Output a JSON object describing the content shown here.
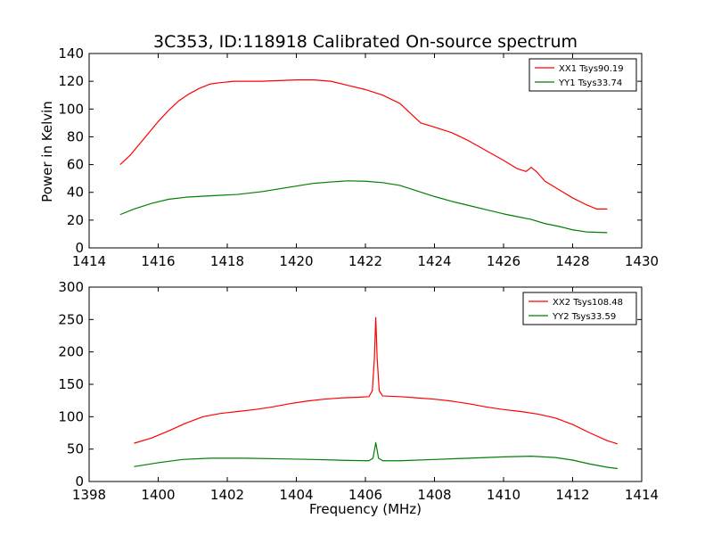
{
  "chart_data": {
    "title": "3C353, ID:118918 Calibrated On-source spectrum",
    "ylabel": "Power in Kelvin",
    "xlabel": "Frequency (MHz)",
    "panels": [
      {
        "type": "line",
        "xlim": [
          1414,
          1430
        ],
        "ylim": [
          0,
          140
        ],
        "xticks": [
          "1414",
          "1416",
          "1418",
          "1420",
          "1422",
          "1424",
          "1426",
          "1428",
          "1430"
        ],
        "yticks": [
          "0",
          "20",
          "40",
          "60",
          "80",
          "100",
          "120",
          "140"
        ],
        "legend_position": "top-right",
        "series": [
          {
            "name": "XX1 Tsys90.19",
            "color": "#ff0000",
            "points": [
              [
                1414.9,
                60
              ],
              [
                1415.2,
                67
              ],
              [
                1415.5,
                76
              ],
              [
                1415.8,
                85
              ],
              [
                1416.0,
                91
              ],
              [
                1416.3,
                99
              ],
              [
                1416.6,
                106
              ],
              [
                1416.9,
                111
              ],
              [
                1417.2,
                115
              ],
              [
                1417.5,
                118
              ],
              [
                1417.8,
                119
              ],
              [
                1418.2,
                120
              ],
              [
                1419.0,
                120
              ],
              [
                1420.0,
                121
              ],
              [
                1420.5,
                121
              ],
              [
                1421.0,
                120
              ],
              [
                1421.5,
                117
              ],
              [
                1422.0,
                114
              ],
              [
                1422.5,
                110
              ],
              [
                1423.0,
                104
              ],
              [
                1423.3,
                97
              ],
              [
                1423.6,
                90
              ],
              [
                1424.0,
                87
              ],
              [
                1424.5,
                83
              ],
              [
                1425.0,
                77
              ],
              [
                1425.5,
                70
              ],
              [
                1426.0,
                63
              ],
              [
                1426.4,
                57
              ],
              [
                1426.65,
                55
              ],
              [
                1426.8,
                58
              ],
              [
                1426.95,
                55
              ],
              [
                1427.2,
                48
              ],
              [
                1427.6,
                42
              ],
              [
                1428.0,
                36
              ],
              [
                1428.4,
                31
              ],
              [
                1428.7,
                28
              ],
              [
                1429.0,
                28
              ]
            ]
          },
          {
            "name": "YY1 Tsys33.74",
            "color": "#008000",
            "points": [
              [
                1414.9,
                24
              ],
              [
                1415.3,
                28
              ],
              [
                1415.8,
                32
              ],
              [
                1416.3,
                35
              ],
              [
                1416.8,
                36.5
              ],
              [
                1417.5,
                37.5
              ],
              [
                1418.3,
                38.5
              ],
              [
                1419.0,
                40.5
              ],
              [
                1419.5,
                42.5
              ],
              [
                1420.0,
                44.5
              ],
              [
                1420.5,
                46.5
              ],
              [
                1421.0,
                47.5
              ],
              [
                1421.5,
                48.3
              ],
              [
                1422.0,
                48
              ],
              [
                1422.5,
                47
              ],
              [
                1423.0,
                45
              ],
              [
                1423.5,
                41
              ],
              [
                1424.0,
                37
              ],
              [
                1424.5,
                33.5
              ],
              [
                1425.0,
                30.5
              ],
              [
                1425.5,
                27.5
              ],
              [
                1426.0,
                24.5
              ],
              [
                1426.5,
                22
              ],
              [
                1426.8,
                20.5
              ],
              [
                1427.2,
                17.5
              ],
              [
                1427.6,
                15.5
              ],
              [
                1428.0,
                13
              ],
              [
                1428.4,
                11.5
              ],
              [
                1429.0,
                11
              ]
            ]
          }
        ]
      },
      {
        "type": "line",
        "xlim": [
          1398,
          1414
        ],
        "ylim": [
          0,
          300
        ],
        "xticks": [
          "1398",
          "1400",
          "1402",
          "1404",
          "1406",
          "1408",
          "1410",
          "1412",
          "1414"
        ],
        "yticks": [
          "0",
          "50",
          "100",
          "150",
          "200",
          "250",
          "300"
        ],
        "legend_position": "top-right",
        "series": [
          {
            "name": "XX2 Tsys108.48",
            "color": "#ff0000",
            "points": [
              [
                1399.3,
                59
              ],
              [
                1399.8,
                67
              ],
              [
                1400.3,
                78
              ],
              [
                1400.8,
                90
              ],
              [
                1401.3,
                100
              ],
              [
                1401.8,
                105
              ],
              [
                1402.3,
                108
              ],
              [
                1402.8,
                111
              ],
              [
                1403.3,
                115
              ],
              [
                1403.8,
                120
              ],
              [
                1404.3,
                124
              ],
              [
                1404.8,
                127
              ],
              [
                1405.3,
                129
              ],
              [
                1405.8,
                130
              ],
              [
                1406.1,
                131
              ],
              [
                1406.2,
                140
              ],
              [
                1406.26,
                190
              ],
              [
                1406.3,
                253
              ],
              [
                1406.34,
                190
              ],
              [
                1406.4,
                140
              ],
              [
                1406.5,
                132
              ],
              [
                1407.0,
                131
              ],
              [
                1407.5,
                129
              ],
              [
                1408.0,
                127
              ],
              [
                1408.5,
                124
              ],
              [
                1409.0,
                120
              ],
              [
                1409.5,
                115
              ],
              [
                1410.0,
                111
              ],
              [
                1410.5,
                108
              ],
              [
                1411.0,
                104
              ],
              [
                1411.5,
                98
              ],
              [
                1412.0,
                88
              ],
              [
                1412.5,
                75
              ],
              [
                1413.0,
                63
              ],
              [
                1413.3,
                58
              ]
            ]
          },
          {
            "name": "YY2 Tsys33.59",
            "color": "#008000",
            "points": [
              [
                1399.3,
                23
              ],
              [
                1400.0,
                29
              ],
              [
                1400.7,
                34
              ],
              [
                1401.5,
                36
              ],
              [
                1402.5,
                36
              ],
              [
                1403.5,
                35
              ],
              [
                1404.5,
                34
              ],
              [
                1405.5,
                32.5
              ],
              [
                1406.1,
                32
              ],
              [
                1406.22,
                36
              ],
              [
                1406.3,
                60
              ],
              [
                1406.38,
                36
              ],
              [
                1406.5,
                32
              ],
              [
                1407.0,
                32
              ],
              [
                1408.0,
                34
              ],
              [
                1409.0,
                36
              ],
              [
                1410.0,
                38
              ],
              [
                1410.8,
                39
              ],
              [
                1411.5,
                37
              ],
              [
                1412.0,
                33
              ],
              [
                1412.5,
                27
              ],
              [
                1413.0,
                22
              ],
              [
                1413.3,
                20
              ]
            ]
          }
        ]
      }
    ]
  }
}
